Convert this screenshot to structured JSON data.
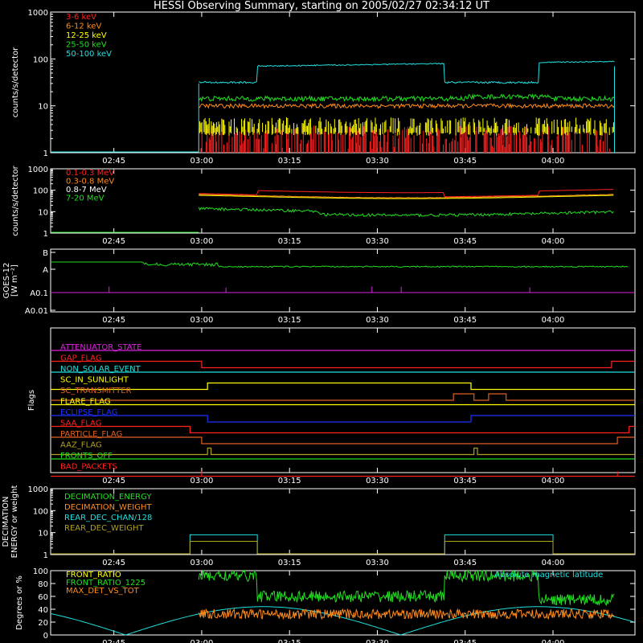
{
  "title": "HESSI Observing Summary, starting on 2005/02/27 02:34:12 UT",
  "x_ticks": [
    "02:45",
    "03:00",
    "03:15",
    "03:30",
    "03:45",
    "04:00"
  ],
  "colors": {
    "red": "#ff2020",
    "orange": "#ff8c1a",
    "yellow": "#ffff00",
    "green": "#20e020",
    "cyan": "#20e0e0",
    "magenta": "#e020e0",
    "blue": "#2030ff",
    "olive": "#b0a020",
    "white": "#ffffff",
    "darkorange": "#e06020"
  },
  "chart_data": [
    {
      "type": "line",
      "ylabel": "counts/s/detector",
      "y_tick_labels": [
        "1",
        "10",
        "100",
        "1000"
      ],
      "ylim": [
        1,
        1000
      ],
      "ylog": true,
      "series": [
        {
          "name": "3-6 keV",
          "color": "red"
        },
        {
          "name": "6-12 keV",
          "color": "orange"
        },
        {
          "name": "12-25 keV",
          "color": "yellow"
        },
        {
          "name": "25-50 keV",
          "color": "green"
        },
        {
          "name": "50-100 keV",
          "color": "cyan"
        }
      ]
    },
    {
      "type": "line",
      "ylabel": "counts/s/detector",
      "y_tick_labels": [
        "1",
        "10",
        "100",
        "1000"
      ],
      "ylim": [
        1,
        1000
      ],
      "ylog": true,
      "series": [
        {
          "name": "0.1-0.3 MeV",
          "color": "red"
        },
        {
          "name": "0.3-0.8 MeV",
          "color": "orange"
        },
        {
          "name": "0.8-7 MeV",
          "color": "white"
        },
        {
          "name": "7-20 MeV",
          "color": "green"
        }
      ]
    },
    {
      "type": "line",
      "ylabel": "GOES-12",
      "ylabel2": "[W m⁻²]",
      "y_tick_labels": [
        "B",
        "A",
        "A0.1",
        "A0.01"
      ]
    },
    {
      "type": "line",
      "ylabel": "Flags",
      "flags": [
        {
          "name": "ATTENUATOR_STATE",
          "color": "magenta"
        },
        {
          "name": "GAP_FLAG",
          "color": "red"
        },
        {
          "name": "NON_SOLAR_EVENT",
          "color": "cyan"
        },
        {
          "name": "SC_IN_SUNLIGHT",
          "color": "yellow"
        },
        {
          "name": "SC_TRANSMITTER",
          "color": "darkorange"
        },
        {
          "name": "FLARE_FLAG",
          "color": "yellow"
        },
        {
          "name": "ECLIPSE_FLAG",
          "color": "blue"
        },
        {
          "name": "SAA_FLAG",
          "color": "red"
        },
        {
          "name": "PARTICLE_FLAG",
          "color": "darkorange"
        },
        {
          "name": "AAZ_FLAG",
          "color": "olive"
        },
        {
          "name": "FRONTS_OFF",
          "color": "green"
        },
        {
          "name": "BAD_PACKETS",
          "color": "red"
        }
      ]
    },
    {
      "type": "line",
      "ylabel": "DECIMATION",
      "ylabel2": "ENERGY or weight",
      "y_tick_labels": [
        "1",
        "10",
        "100",
        "1000"
      ],
      "ylim": [
        1,
        1000
      ],
      "ylog": true,
      "series": [
        {
          "name": "DECIMATION_ENERGY",
          "color": "green"
        },
        {
          "name": "DECIMATION_WEIGHT",
          "color": "orange"
        },
        {
          "name": "REAR_DEC_CHAN/128",
          "color": "cyan"
        },
        {
          "name": "REAR_DEC_WEIGHT",
          "color": "olive"
        }
      ]
    },
    {
      "type": "line",
      "ylabel": "Degrees or %",
      "y_tick_labels": [
        "0",
        "20",
        "40",
        "60",
        "80",
        "100"
      ],
      "ylim": [
        0,
        100
      ],
      "series": [
        {
          "name": "FRONT_RATIO",
          "color": "yellow"
        },
        {
          "name": "FRONT_RATIO_1225",
          "color": "green"
        },
        {
          "name": "MAX_DET_VS_TOT",
          "color": "orange"
        },
        {
          "name": "Absolute magnetic latitude",
          "color": "cyan"
        }
      ]
    }
  ]
}
